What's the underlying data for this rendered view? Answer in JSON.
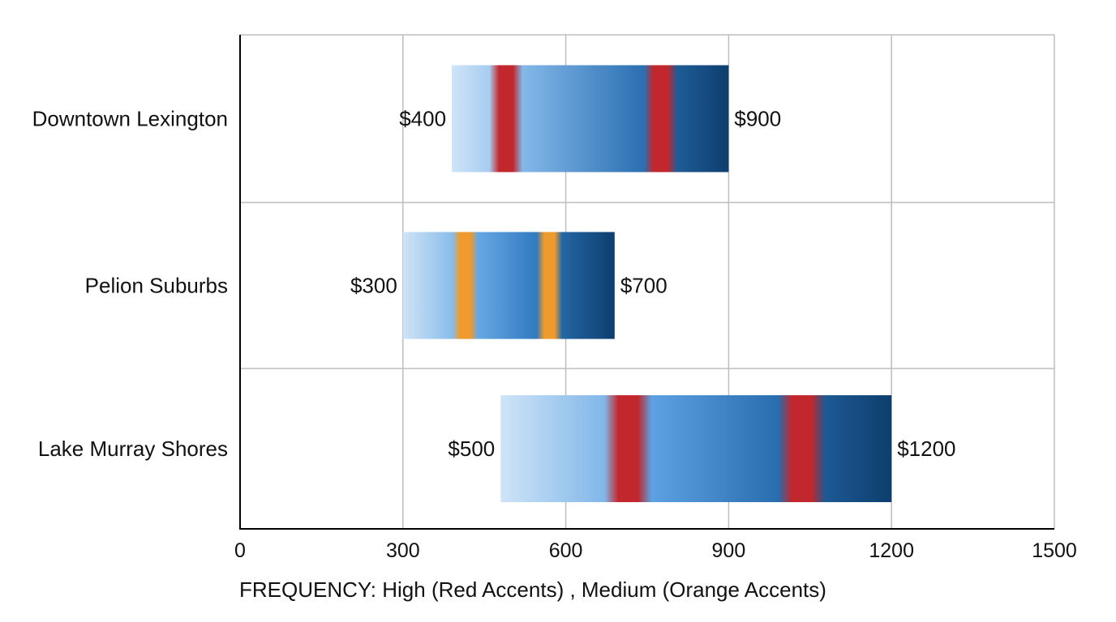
{
  "chart_data": {
    "type": "bar",
    "orientation": "horizontal",
    "subtype": "floating-range",
    "xlim": [
      0,
      1500
    ],
    "x_ticks": [
      0,
      300,
      600,
      900,
      1200,
      1500
    ],
    "x_tick_labels": [
      "0",
      "300",
      "600",
      "900",
      "1200",
      "1500"
    ],
    "grid": true,
    "categories": [
      "Downtown Lexington",
      "Pelion Suburbs",
      "Lake Murray Shores"
    ],
    "ranges": [
      {
        "category": "Downtown Lexington",
        "start": 390,
        "end": 900,
        "start_label": "$400",
        "end_label": "$900",
        "accent": "high",
        "accent_positions": [
          490,
          775
        ]
      },
      {
        "category": "Pelion Suburbs",
        "start": 300,
        "end": 690,
        "start_label": "$300",
        "end_label": "$700",
        "accent": "medium",
        "accent_positions": [
          415,
          570
        ]
      },
      {
        "category": "Lake Murray Shores",
        "start": 480,
        "end": 1200,
        "start_label": "$500",
        "end_label": "$1200",
        "accent": "high",
        "accent_positions": [
          715,
          1035
        ]
      }
    ],
    "footnote": "FREQUENCY: High (Red Accents) , Medium (Orange Accents)",
    "colors": {
      "bar_start": "#cfe4f7",
      "bar_mid": "#3c8fdc",
      "bar_end": "#0d3e6e",
      "high_accent": "#c1272d",
      "medium_accent": "#ee9a2e",
      "grid": "#bdbdbd",
      "axis": "#000000"
    }
  }
}
